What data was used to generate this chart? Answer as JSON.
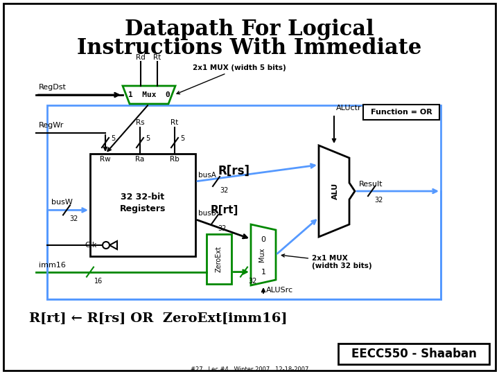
{
  "title_line1": "Datapath For Logical",
  "title_line2": "Instructions With Immediate",
  "title_fontsize": 22,
  "bg_color": "#ffffff",
  "border_color": "#000000",
  "green_color": "#008800",
  "blue_color": "#5599ff",
  "black_color": "#000000",
  "bottom_text": "R[rt] ← R[rs] OR  ZeroExt[imm16]",
  "footer_text": "EECC550 - Shaaban",
  "sub_footer": "#27   Lec #4   Winter 2007   12-18-2007"
}
